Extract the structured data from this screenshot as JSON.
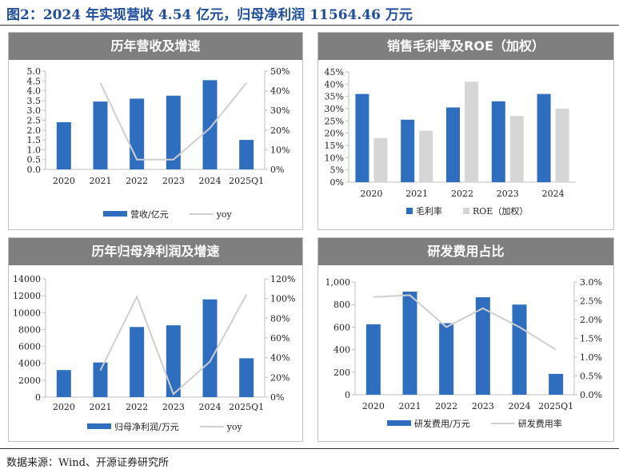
{
  "figure_title": "图2：2024 年实现营收 4.54 亿元，归母净利润 11564.46 万元",
  "source": "数据来源：Wind、开源证券研究所",
  "colors": {
    "bar": "#2f6dbf",
    "line": "#cfcfcf",
    "bar_secondary": "#d6d6d6",
    "header": "#7f7f7f"
  },
  "chart_data": [
    {
      "type": "bar",
      "title": "历年营收及增速",
      "categories": [
        "2020",
        "2021",
        "2022",
        "2023",
        "2024",
        "2025Q1"
      ],
      "series": [
        {
          "name": "营收/亿元",
          "type": "bar",
          "axis": "left",
          "values": [
            2.4,
            3.45,
            3.6,
            3.75,
            4.54,
            1.5
          ]
        },
        {
          "name": "yoy",
          "type": "line",
          "axis": "right",
          "values": [
            null,
            44,
            5,
            5,
            21,
            44
          ]
        }
      ],
      "y_left": {
        "min": 0,
        "max": 5,
        "ticks": [
          "0.0",
          "0.5",
          "1.0",
          "1.5",
          "2.0",
          "2.5",
          "3.0",
          "3.5",
          "4.0",
          "4.5",
          "5.0"
        ]
      },
      "y_right": {
        "min": 0,
        "max": 50,
        "ticks": [
          "0%",
          "10%",
          "20%",
          "30%",
          "40%",
          "50%"
        ]
      },
      "legend": "bottom"
    },
    {
      "type": "bar",
      "title": "销售毛利率及ROE（加权）",
      "categories": [
        "2020",
        "2021",
        "2022",
        "2023",
        "2024"
      ],
      "series": [
        {
          "name": "毛利率",
          "type": "bar",
          "axis": "left",
          "values": [
            36,
            25.5,
            30.5,
            33,
            36
          ]
        },
        {
          "name": "ROE（加权）",
          "type": "bar",
          "axis": "left",
          "values": [
            18,
            21,
            41,
            27,
            30
          ]
        }
      ],
      "y_left": {
        "min": 0,
        "max": 45,
        "ticks": [
          "0%",
          "5%",
          "10%",
          "15%",
          "20%",
          "25%",
          "30%",
          "35%",
          "40%",
          "45%"
        ]
      },
      "legend": "bottom"
    },
    {
      "type": "bar",
      "title": "历年归母净利润及增速",
      "categories": [
        "2020",
        "2021",
        "2022",
        "2023",
        "2024",
        "2025Q1"
      ],
      "series": [
        {
          "name": "归母净利润/万元",
          "type": "bar",
          "axis": "left",
          "values": [
            3200,
            4100,
            8300,
            8500,
            11564.46,
            4600
          ]
        },
        {
          "name": "yoy",
          "type": "line",
          "axis": "right",
          "values": [
            null,
            27,
            102,
            3,
            36,
            104
          ]
        }
      ],
      "y_left": {
        "min": 0,
        "max": 14000,
        "ticks": [
          "0",
          "2000",
          "4000",
          "6000",
          "8000",
          "10000",
          "12000",
          "14000"
        ]
      },
      "y_right": {
        "min": 0,
        "max": 120,
        "ticks": [
          "0%",
          "20%",
          "40%",
          "60%",
          "80%",
          "100%",
          "120%"
        ]
      },
      "legend": "bottom"
    },
    {
      "type": "bar",
      "title": "研发费用占比",
      "categories": [
        "2020",
        "2021",
        "2022",
        "2023",
        "2024",
        "2025Q1"
      ],
      "series": [
        {
          "name": "研发费用/万元",
          "type": "bar",
          "axis": "left",
          "values": [
            625,
            915,
            635,
            865,
            800,
            185
          ]
        },
        {
          "name": "研发费用率",
          "type": "line",
          "axis": "right",
          "values": [
            2.6,
            2.65,
            1.8,
            2.3,
            1.8,
            1.2
          ]
        }
      ],
      "y_left": {
        "min": 0,
        "max": 1000,
        "ticks": [
          "0",
          "200",
          "400",
          "600",
          "800",
          "1,000"
        ]
      },
      "y_right": {
        "min": 0,
        "max": 3,
        "ticks": [
          "0.0%",
          "0.5%",
          "1.0%",
          "1.5%",
          "2.0%",
          "2.5%",
          "3.0%"
        ]
      },
      "legend": "bottom"
    }
  ]
}
